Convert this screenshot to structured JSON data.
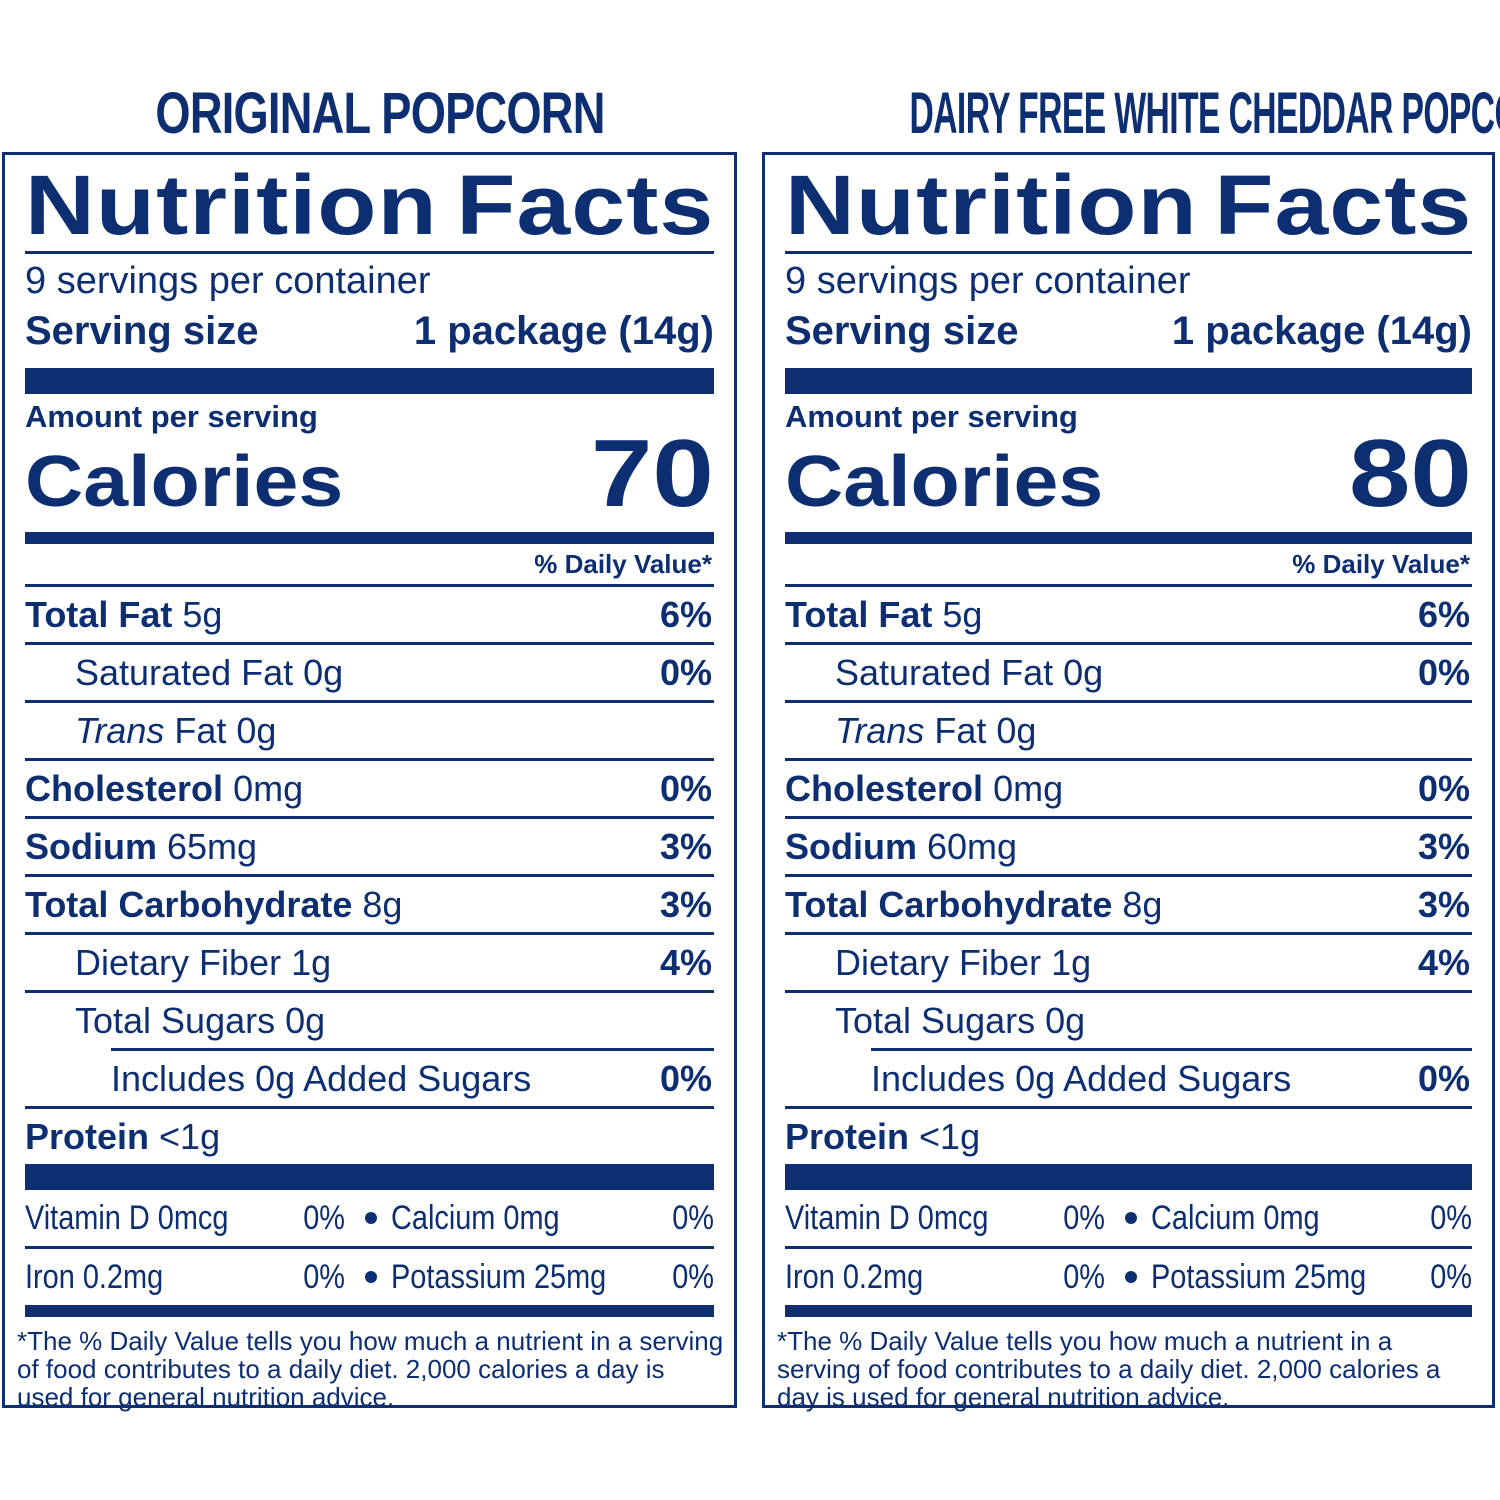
{
  "labels": [
    {
      "product_title": "ORIGINAL POPCORN",
      "heading_word1": "Nutrition",
      "heading_word2": "Facts",
      "servings_per_container": "9 servings per container",
      "serving_size_label": "Serving size",
      "serving_size_value": "1 package (14g)",
      "amount_per_serving": "Amount per serving",
      "calories_label": "Calories",
      "calories_value": "70",
      "daily_value_header": "% Daily Value*",
      "nutrients": [
        {
          "name": "Total Fat",
          "amount": "5g",
          "dv": "6%"
        },
        {
          "name": "Saturated Fat",
          "amount": "0g",
          "dv": "0%"
        },
        {
          "name_italic": "Trans",
          "name": "Fat",
          "amount": "0g",
          "dv": ""
        },
        {
          "name": "Cholesterol",
          "amount": "0mg",
          "dv": "0%"
        },
        {
          "name": "Sodium",
          "amount": "65mg",
          "dv": "3%"
        },
        {
          "name": "Total Carbohydrate",
          "amount": "8g",
          "dv": "3%"
        },
        {
          "name": "Dietary Fiber",
          "amount": "1g",
          "dv": "4%"
        },
        {
          "name": "Total Sugars",
          "amount": "0g",
          "dv": ""
        },
        {
          "name": "Includes 0g Added Sugars",
          "amount": "",
          "dv": "0%"
        },
        {
          "name": "Protein",
          "amount": "<1g",
          "dv": ""
        }
      ],
      "vitamins": [
        {
          "name": "Vitamin D 0mcg",
          "dv": "0%",
          "name2": "Calcium 0mg",
          "dv2": "0%"
        },
        {
          "name": "Iron 0.2mg",
          "dv": "0%",
          "name2": "Potassium 25mg",
          "dv2": "0%"
        }
      ],
      "footnote": "*The % Daily Value tells you how much a nutrient in a serving of food contributes to a daily diet. 2,000 calories a day is used for general nutrition advice."
    },
    {
      "product_title": "DAIRY FREE WHITE CHEDDAR POPCORN FLAVORED",
      "heading_word1": "Nutrition",
      "heading_word2": "Facts",
      "servings_per_container": "9 servings per container",
      "serving_size_label": "Serving size",
      "serving_size_value": "1 package (14g)",
      "amount_per_serving": "Amount per serving",
      "calories_label": "Calories",
      "calories_value": "80",
      "daily_value_header": "% Daily Value*",
      "nutrients": [
        {
          "name": "Total Fat",
          "amount": "5g",
          "dv": "6%"
        },
        {
          "name": "Saturated Fat",
          "amount": "0g",
          "dv": "0%"
        },
        {
          "name_italic": "Trans",
          "name": "Fat",
          "amount": "0g",
          "dv": ""
        },
        {
          "name": "Cholesterol",
          "amount": "0mg",
          "dv": "0%"
        },
        {
          "name": "Sodium",
          "amount": "60mg",
          "dv": "3%"
        },
        {
          "name": "Total Carbohydrate",
          "amount": "8g",
          "dv": "3%"
        },
        {
          "name": "Dietary Fiber",
          "amount": "1g",
          "dv": "4%"
        },
        {
          "name": "Total Sugars",
          "amount": "0g",
          "dv": ""
        },
        {
          "name": "Includes 0g Added Sugars",
          "amount": "",
          "dv": "0%"
        },
        {
          "name": "Protein",
          "amount": "<1g",
          "dv": ""
        }
      ],
      "vitamins": [
        {
          "name": "Vitamin D 0mcg",
          "dv": "0%",
          "name2": "Calcium 0mg",
          "dv2": "0%"
        },
        {
          "name": "Iron 0.2mg",
          "dv": "0%",
          "name2": "Potassium 25mg",
          "dv2": "0%"
        }
      ],
      "footnote": "*The % Daily Value tells you how much a nutrient in a serving of food contributes to a daily diet. 2,000 calories a day is used for general nutrition advice."
    }
  ],
  "colors": {
    "ink": "#0d2f72",
    "background": "#ffffff"
  }
}
